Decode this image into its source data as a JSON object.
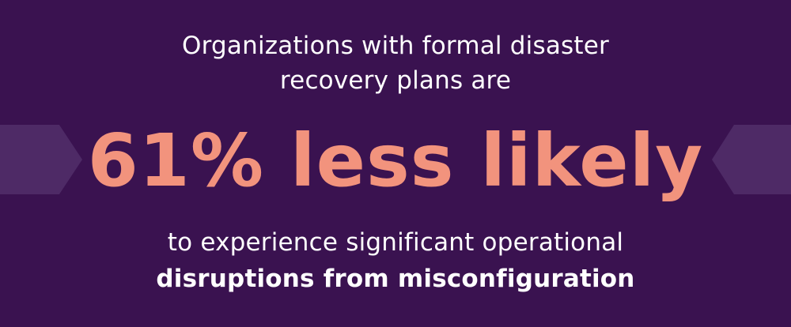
{
  "intro": {
    "line1": "Organizations with formal disaster",
    "line2": "recovery plans are"
  },
  "headline": "61% less likely",
  "outro": {
    "line1": "to experience significant operational",
    "line2": "disruptions from misconfiguration"
  },
  "colors": {
    "background": "#3a1250",
    "chevron": "#4e2a66",
    "accent": "#f2937d",
    "text": "#ffffff"
  }
}
